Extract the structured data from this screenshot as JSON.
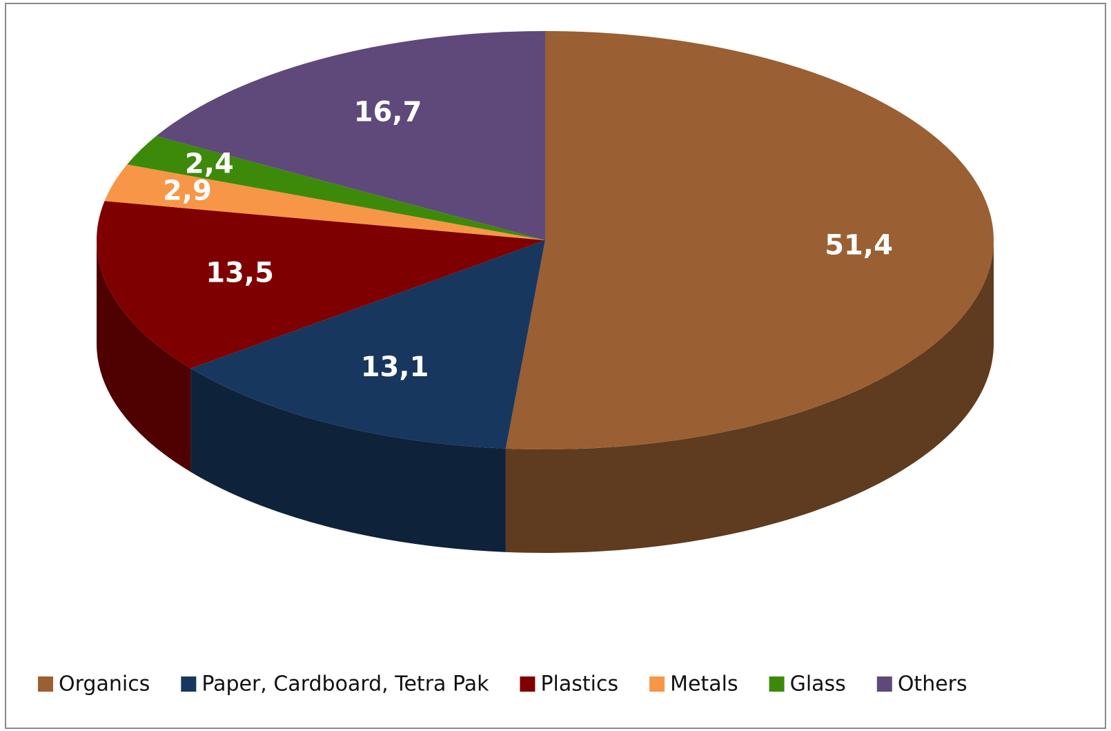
{
  "chart_data": {
    "type": "pie",
    "categories": [
      "Organics",
      "Paper, Cardboard, Tetra Pak",
      "Plastics",
      "Metals",
      "Glass",
      "Others"
    ],
    "values": [
      51.4,
      13.1,
      13.5,
      2.9,
      2.4,
      16.7
    ],
    "value_labels": [
      "51,4",
      "13,1",
      "13,5",
      "2,9",
      "2,4",
      "16,7"
    ],
    "colors": [
      "#9a5f32",
      "#17375e",
      "#7f0000",
      "#f79646",
      "#3d8a0a",
      "#5f497a"
    ],
    "legend": "bottom"
  }
}
